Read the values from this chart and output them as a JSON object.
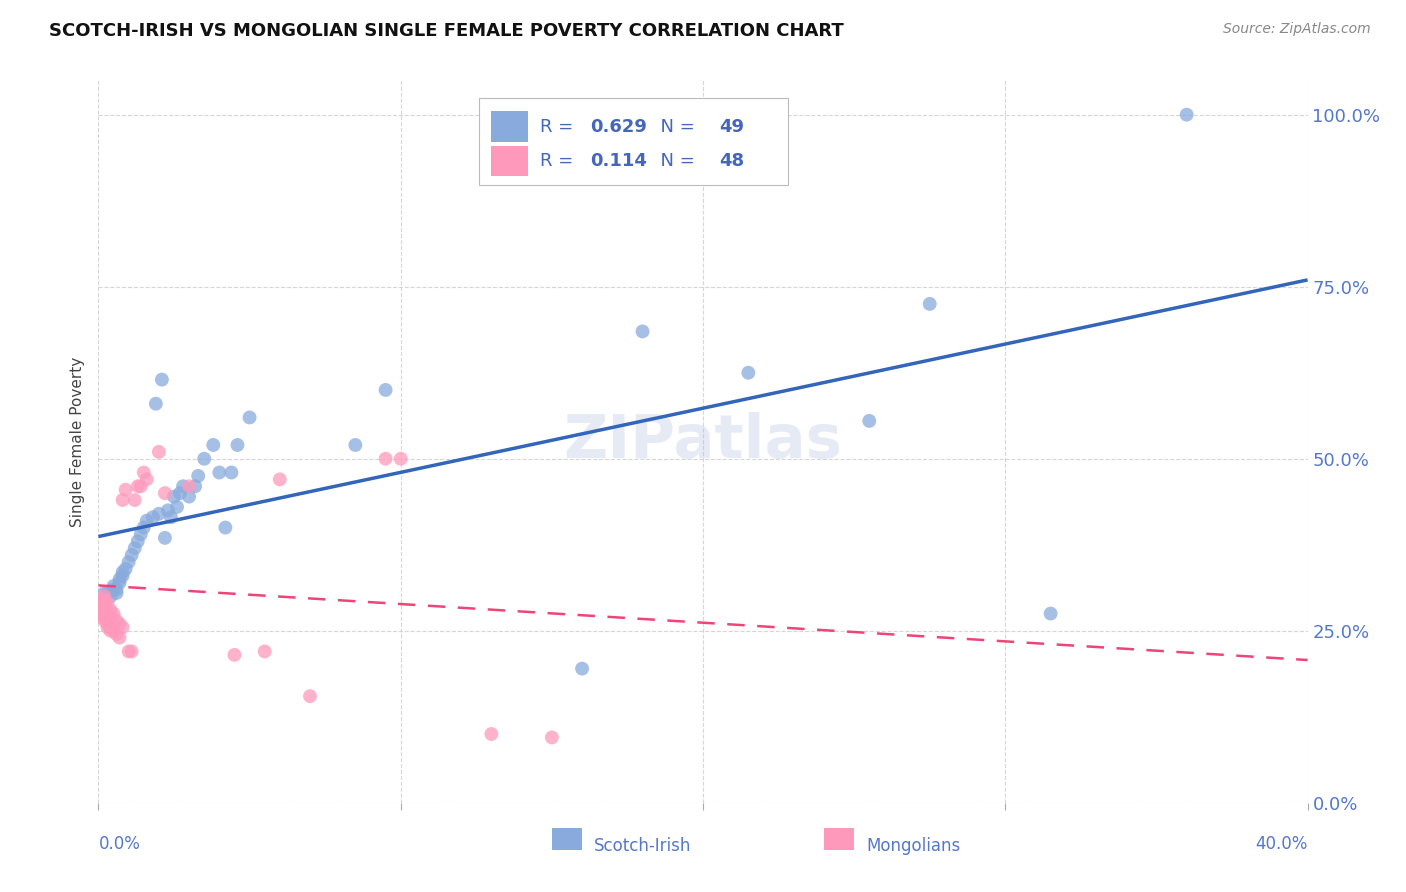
{
  "title": "SCOTCH-IRISH VS MONGOLIAN SINGLE FEMALE POVERTY CORRELATION CHART",
  "source": "Source: ZipAtlas.com",
  "ylabel": "Single Female Poverty",
  "watermark": "ZIPatlas",
  "scotch_irish": {
    "R": 0.629,
    "N": 49,
    "color": "#88AADD",
    "line_color": "#3366BB",
    "x": [
      0.002,
      0.003,
      0.004,
      0.005,
      0.005,
      0.006,
      0.006,
      0.007,
      0.007,
      0.008,
      0.008,
      0.009,
      0.01,
      0.011,
      0.012,
      0.013,
      0.014,
      0.015,
      0.016,
      0.018,
      0.019,
      0.02,
      0.021,
      0.022,
      0.023,
      0.024,
      0.025,
      0.026,
      0.027,
      0.028,
      0.03,
      0.032,
      0.033,
      0.035,
      0.038,
      0.04,
      0.042,
      0.044,
      0.046,
      0.05,
      0.085,
      0.095,
      0.16,
      0.18,
      0.215,
      0.255,
      0.275,
      0.315,
      0.36
    ],
    "y": [
      0.305,
      0.305,
      0.3,
      0.31,
      0.315,
      0.305,
      0.31,
      0.32,
      0.325,
      0.33,
      0.335,
      0.34,
      0.35,
      0.36,
      0.37,
      0.38,
      0.39,
      0.4,
      0.41,
      0.415,
      0.58,
      0.42,
      0.615,
      0.385,
      0.425,
      0.415,
      0.445,
      0.43,
      0.45,
      0.46,
      0.445,
      0.46,
      0.475,
      0.5,
      0.52,
      0.48,
      0.4,
      0.48,
      0.52,
      0.56,
      0.52,
      0.6,
      0.195,
      0.685,
      0.625,
      0.555,
      0.725,
      0.275,
      1.0
    ]
  },
  "mongolian": {
    "R": 0.114,
    "N": 48,
    "color": "#FF99BB",
    "line_color": "#EE4477",
    "x": [
      0.001,
      0.001,
      0.001,
      0.001,
      0.001,
      0.002,
      0.002,
      0.002,
      0.002,
      0.002,
      0.002,
      0.003,
      0.003,
      0.003,
      0.003,
      0.003,
      0.004,
      0.004,
      0.004,
      0.004,
      0.005,
      0.005,
      0.005,
      0.006,
      0.006,
      0.007,
      0.007,
      0.008,
      0.008,
      0.009,
      0.01,
      0.011,
      0.012,
      0.013,
      0.014,
      0.015,
      0.016,
      0.02,
      0.022,
      0.03,
      0.045,
      0.055,
      0.06,
      0.07,
      0.095,
      0.1,
      0.13,
      0.15
    ],
    "y": [
      0.28,
      0.295,
      0.275,
      0.27,
      0.29,
      0.265,
      0.27,
      0.28,
      0.29,
      0.295,
      0.3,
      0.255,
      0.26,
      0.275,
      0.28,
      0.29,
      0.25,
      0.26,
      0.27,
      0.28,
      0.25,
      0.26,
      0.275,
      0.245,
      0.265,
      0.24,
      0.26,
      0.255,
      0.44,
      0.455,
      0.22,
      0.22,
      0.44,
      0.46,
      0.46,
      0.48,
      0.47,
      0.51,
      0.45,
      0.46,
      0.215,
      0.22,
      0.47,
      0.155,
      0.5,
      0.5,
      0.1,
      0.095
    ]
  },
  "xlim": [
    0.0,
    0.4
  ],
  "ylim": [
    0.0,
    1.05
  ],
  "yticks": [
    0.0,
    0.25,
    0.5,
    0.75,
    1.0
  ],
  "ytick_labels": [
    "0.0%",
    "25.0%",
    "50.0%",
    "75.0%",
    "100.0%"
  ],
  "xticks": [
    0.0,
    0.1,
    0.2,
    0.3,
    0.4
  ],
  "grid_color": "#CCCCCC",
  "bg_color": "#FFFFFF"
}
